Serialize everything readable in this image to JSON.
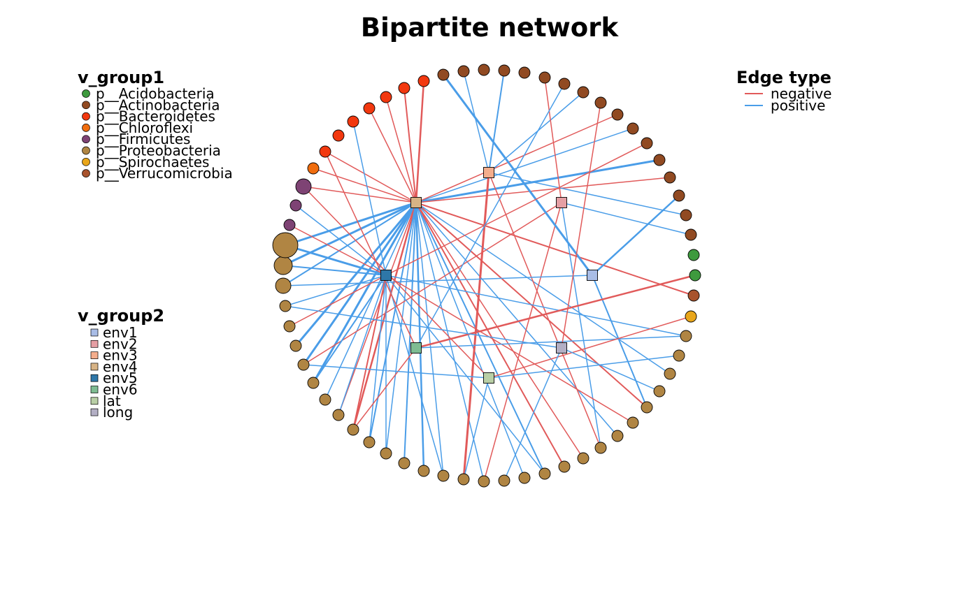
{
  "title": "Bipartite network",
  "legend_group1": {
    "title": "v_group1",
    "items": [
      {
        "label": "p__Acidobacteria",
        "color": "#3e9a3e"
      },
      {
        "label": "p__Actinobacteria",
        "color": "#914a22"
      },
      {
        "label": "p__Bacteroidetes",
        "color": "#f2380f"
      },
      {
        "label": "p__Chloroflexi",
        "color": "#f06d0e"
      },
      {
        "label": "p__Firmicutes",
        "color": "#7e4374"
      },
      {
        "label": "p__Proteobacteria",
        "color": "#b08543"
      },
      {
        "label": "p__Spirochaetes",
        "color": "#e9a61a"
      },
      {
        "label": "p__Verrucomicrobia",
        "color": "#a8532d"
      }
    ]
  },
  "legend_group2": {
    "title": "v_group2",
    "items": [
      {
        "label": "env1",
        "color": "#a9bde6"
      },
      {
        "label": "env2",
        "color": "#e59fa4"
      },
      {
        "label": "env3",
        "color": "#f4ad8c"
      },
      {
        "label": "env4",
        "color": "#d7b385"
      },
      {
        "label": "env5",
        "color": "#2e77a8"
      },
      {
        "label": "env6",
        "color": "#7fbc92"
      },
      {
        "label": "lat",
        "color": "#b9cfa6"
      },
      {
        "label": "long",
        "color": "#b3afc4"
      }
    ]
  },
  "legend_edge": {
    "title": "Edge type",
    "items": [
      {
        "label": "negative",
        "color": "#e15a5a"
      },
      {
        "label": "positive",
        "color": "#4a9de8"
      }
    ]
  }
}
